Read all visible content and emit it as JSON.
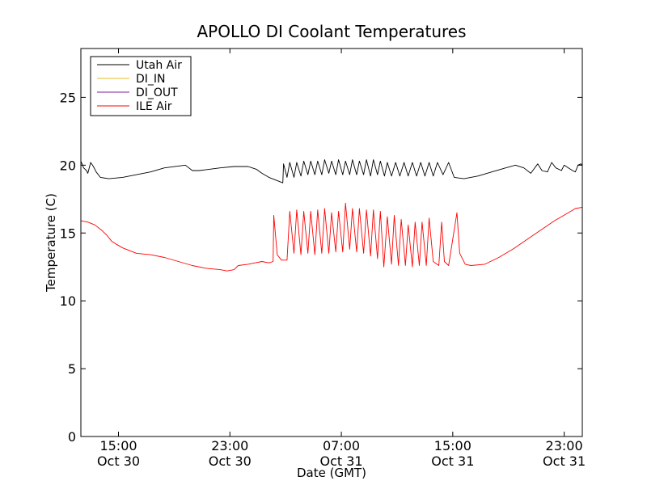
{
  "chart_data": {
    "type": "line",
    "title": "APOLLO DI Coolant Temperatures",
    "xlabel": "Date (GMT)",
    "ylabel": "Temperature (C)",
    "ylim": [
      0,
      28.6
    ],
    "xlim_hours": [
      0,
      36
    ],
    "y_ticks": [
      0,
      5,
      10,
      15,
      20,
      25
    ],
    "x_ticks": [
      {
        "h": 2.7,
        "time": "15:00",
        "date": "Oct 30"
      },
      {
        "h": 10.7,
        "time": "23:00",
        "date": "Oct 30"
      },
      {
        "h": 18.7,
        "time": "07:00",
        "date": "Oct 31"
      },
      {
        "h": 26.7,
        "time": "15:00",
        "date": "Oct 31"
      },
      {
        "h": 34.7,
        "time": "23:00",
        "date": "Oct 31"
      }
    ],
    "legend_position": "top-left",
    "series": [
      {
        "name": "Utah Air",
        "color": "#000000",
        "points": [
          [
            0.0,
            20.3
          ],
          [
            0.2,
            19.8
          ],
          [
            0.4,
            19.6
          ],
          [
            0.5,
            19.4
          ],
          [
            0.7,
            20.2
          ],
          [
            0.9,
            19.9
          ],
          [
            1.1,
            19.5
          ],
          [
            1.4,
            19.1
          ],
          [
            2.0,
            19.0
          ],
          [
            3.0,
            19.1
          ],
          [
            4.0,
            19.3
          ],
          [
            5.0,
            19.5
          ],
          [
            6.0,
            19.8
          ],
          [
            7.5,
            20.0
          ],
          [
            8.0,
            19.6
          ],
          [
            8.5,
            19.6
          ],
          [
            10.0,
            19.8
          ],
          [
            11.0,
            19.9
          ],
          [
            12.0,
            19.9
          ],
          [
            12.3,
            19.8
          ],
          [
            12.6,
            19.7
          ],
          [
            13.0,
            19.4
          ],
          [
            13.5,
            19.1
          ],
          [
            14.5,
            18.7
          ],
          [
            14.55,
            20.1
          ],
          [
            14.8,
            19.1
          ],
          [
            15.0,
            20.2
          ],
          [
            15.3,
            19.1
          ],
          [
            15.5,
            20.2
          ],
          [
            15.8,
            19.2
          ],
          [
            16.0,
            20.3
          ],
          [
            16.3,
            19.3
          ],
          [
            16.5,
            20.3
          ],
          [
            16.8,
            19.3
          ],
          [
            17.0,
            20.3
          ],
          [
            17.3,
            19.3
          ],
          [
            17.5,
            20.4
          ],
          [
            17.8,
            19.4
          ],
          [
            18.0,
            20.3
          ],
          [
            18.3,
            19.3
          ],
          [
            18.5,
            20.4
          ],
          [
            18.8,
            19.3
          ],
          [
            19.0,
            20.3
          ],
          [
            19.3,
            19.3
          ],
          [
            19.5,
            20.4
          ],
          [
            19.8,
            19.3
          ],
          [
            20.0,
            20.3
          ],
          [
            20.3,
            19.3
          ],
          [
            20.5,
            20.4
          ],
          [
            20.8,
            19.2
          ],
          [
            21.0,
            20.4
          ],
          [
            21.3,
            19.3
          ],
          [
            21.5,
            20.3
          ],
          [
            21.8,
            19.2
          ],
          [
            22.0,
            20.2
          ],
          [
            22.3,
            19.2
          ],
          [
            22.6,
            20.2
          ],
          [
            22.9,
            19.2
          ],
          [
            23.2,
            20.2
          ],
          [
            23.5,
            19.2
          ],
          [
            23.8,
            20.2
          ],
          [
            24.1,
            19.2
          ],
          [
            24.4,
            20.2
          ],
          [
            24.7,
            19.2
          ],
          [
            25.0,
            20.2
          ],
          [
            25.3,
            19.2
          ],
          [
            25.6,
            20.2
          ],
          [
            26.0,
            19.3
          ],
          [
            26.4,
            20.2
          ],
          [
            26.8,
            19.1
          ],
          [
            27.5,
            19.0
          ],
          [
            28.5,
            19.2
          ],
          [
            29.5,
            19.5
          ],
          [
            30.5,
            19.8
          ],
          [
            31.2,
            20.0
          ],
          [
            31.8,
            19.8
          ],
          [
            32.3,
            19.4
          ],
          [
            32.8,
            20.1
          ],
          [
            33.1,
            19.6
          ],
          [
            33.5,
            19.5
          ],
          [
            33.8,
            20.2
          ],
          [
            34.1,
            19.8
          ],
          [
            34.5,
            19.6
          ],
          [
            34.7,
            20.0
          ],
          [
            35.0,
            19.8
          ],
          [
            35.3,
            19.6
          ],
          [
            35.5,
            19.5
          ],
          [
            35.7,
            20.0
          ],
          [
            35.9,
            20.1
          ],
          [
            36.0,
            20.0
          ]
        ]
      },
      {
        "name": "DI_IN",
        "color": "#e8b820",
        "points": []
      },
      {
        "name": "DI_OUT",
        "color": "#7b1fa2",
        "points": []
      },
      {
        "name": "ILE Air",
        "color": "#ff0000",
        "points": [
          [
            0.0,
            15.9
          ],
          [
            0.5,
            15.8
          ],
          [
            1.0,
            15.6
          ],
          [
            1.5,
            15.2
          ],
          [
            1.9,
            14.8
          ],
          [
            2.2,
            14.4
          ],
          [
            2.5,
            14.2
          ],
          [
            3.0,
            13.9
          ],
          [
            3.5,
            13.7
          ],
          [
            4.0,
            13.5
          ],
          [
            5.0,
            13.4
          ],
          [
            6.0,
            13.2
          ],
          [
            7.0,
            12.9
          ],
          [
            8.0,
            12.6
          ],
          [
            9.0,
            12.4
          ],
          [
            10.0,
            12.3
          ],
          [
            10.5,
            12.2
          ],
          [
            11.0,
            12.3
          ],
          [
            11.3,
            12.6
          ],
          [
            12.0,
            12.7
          ],
          [
            12.5,
            12.8
          ],
          [
            13.0,
            12.9
          ],
          [
            13.5,
            12.8
          ],
          [
            13.8,
            12.9
          ],
          [
            13.85,
            16.3
          ],
          [
            14.1,
            13.4
          ],
          [
            14.4,
            13.0
          ],
          [
            14.8,
            13.0
          ],
          [
            15.0,
            16.6
          ],
          [
            15.3,
            13.5
          ],
          [
            15.5,
            16.7
          ],
          [
            15.8,
            13.4
          ],
          [
            16.0,
            16.6
          ],
          [
            16.3,
            13.5
          ],
          [
            16.5,
            16.6
          ],
          [
            16.8,
            13.4
          ],
          [
            17.0,
            16.7
          ],
          [
            17.3,
            13.5
          ],
          [
            17.5,
            16.8
          ],
          [
            17.8,
            13.5
          ],
          [
            18.0,
            16.5
          ],
          [
            18.3,
            13.6
          ],
          [
            18.5,
            16.6
          ],
          [
            18.8,
            13.6
          ],
          [
            19.0,
            17.2
          ],
          [
            19.3,
            13.8
          ],
          [
            19.5,
            16.8
          ],
          [
            19.8,
            13.6
          ],
          [
            20.0,
            16.8
          ],
          [
            20.3,
            13.5
          ],
          [
            20.5,
            16.7
          ],
          [
            20.8,
            13.3
          ],
          [
            21.0,
            16.7
          ],
          [
            21.3,
            13.1
          ],
          [
            21.5,
            16.6
          ],
          [
            21.75,
            12.5
          ],
          [
            22.0,
            16.2
          ],
          [
            22.3,
            12.7
          ],
          [
            22.5,
            16.3
          ],
          [
            22.8,
            12.6
          ],
          [
            23.0,
            16.0
          ],
          [
            23.3,
            12.6
          ],
          [
            23.5,
            15.6
          ],
          [
            23.8,
            12.5
          ],
          [
            24.0,
            15.8
          ],
          [
            24.3,
            12.6
          ],
          [
            24.5,
            15.8
          ],
          [
            24.8,
            12.6
          ],
          [
            25.0,
            16.1
          ],
          [
            25.3,
            12.9
          ],
          [
            25.7,
            12.6
          ],
          [
            25.9,
            15.8
          ],
          [
            26.1,
            12.9
          ],
          [
            26.4,
            12.6
          ],
          [
            27.0,
            16.5
          ],
          [
            27.2,
            13.5
          ],
          [
            27.6,
            12.7
          ],
          [
            28.0,
            12.6
          ],
          [
            29.0,
            12.7
          ],
          [
            30.0,
            13.2
          ],
          [
            31.0,
            13.8
          ],
          [
            32.0,
            14.5
          ],
          [
            33.0,
            15.2
          ],
          [
            34.0,
            15.9
          ],
          [
            35.0,
            16.5
          ],
          [
            35.5,
            16.8
          ],
          [
            36.0,
            16.9
          ]
        ]
      }
    ]
  }
}
